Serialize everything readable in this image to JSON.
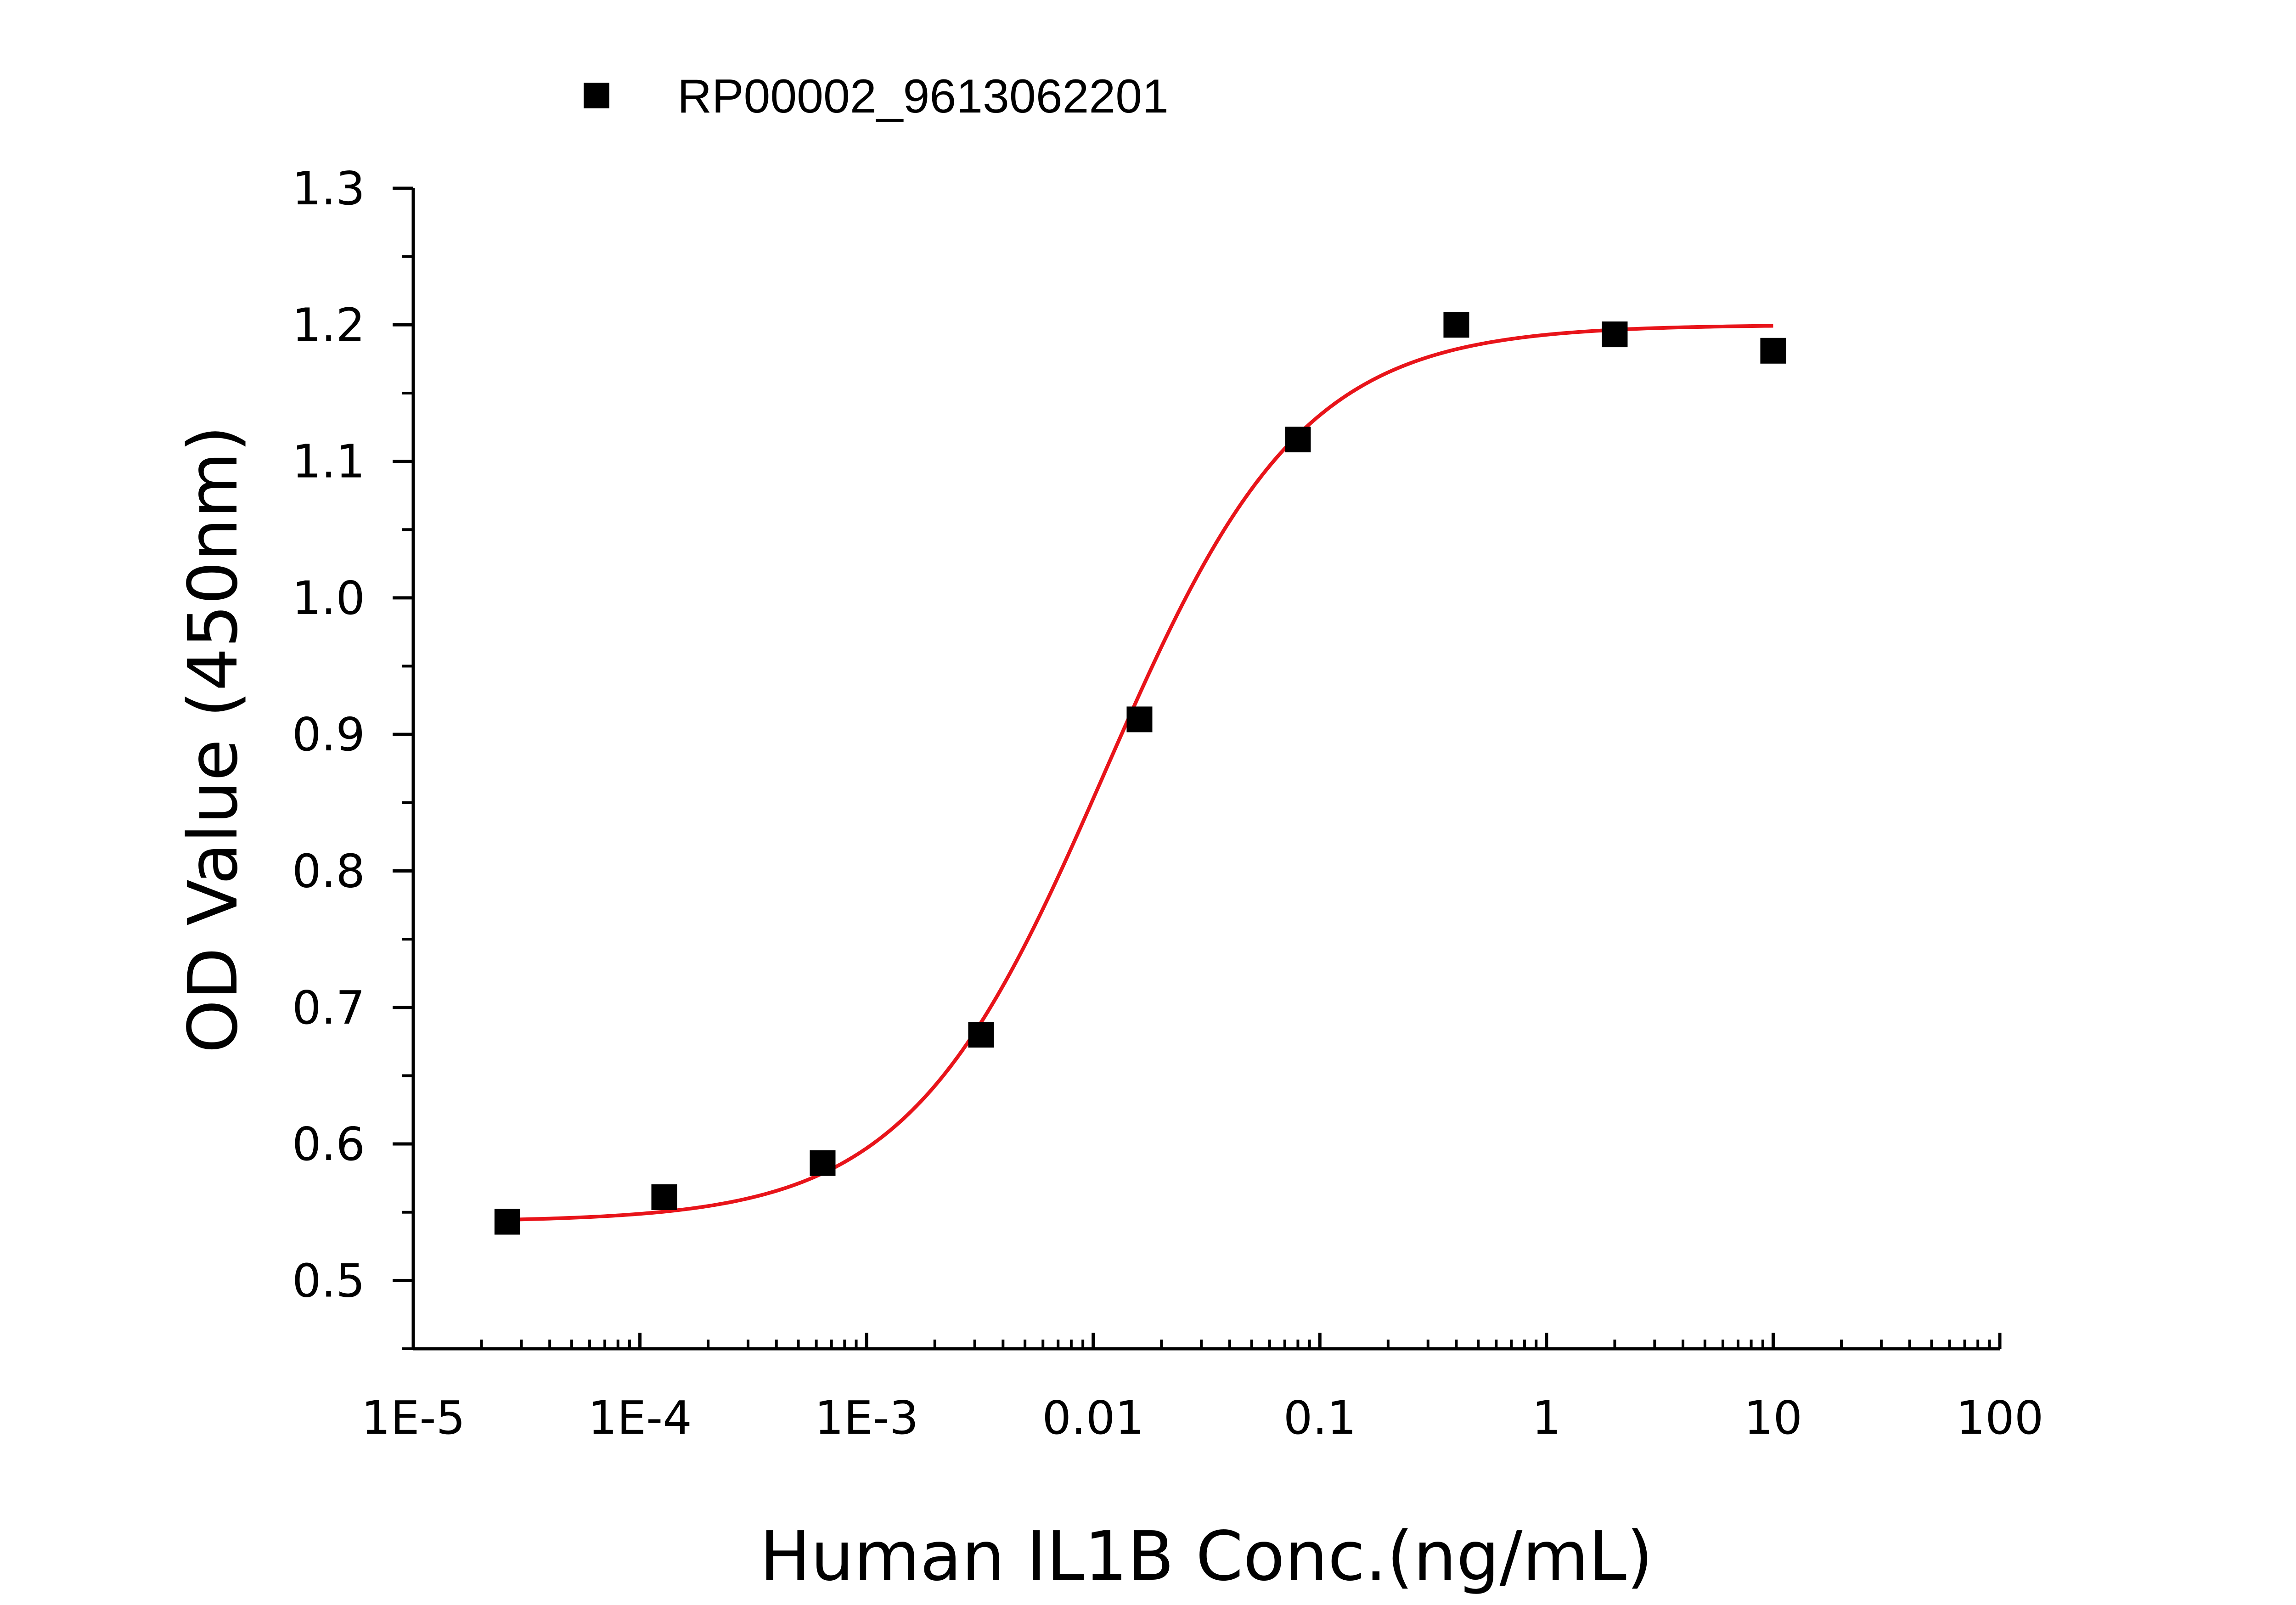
{
  "chart_data": {
    "type": "scatter",
    "title": "",
    "xlabel": "Human IL1B Conc.(ng/mL)",
    "ylabel": "OD Value (450nm)",
    "x_scale": "log10",
    "xlim": [
      1e-05,
      100
    ],
    "ylim": [
      0.45,
      1.3
    ],
    "x_ticks": [
      {
        "value": 1e-05,
        "label": "1E-5"
      },
      {
        "value": 0.0001,
        "label": "1E-4"
      },
      {
        "value": 0.001,
        "label": "1E-3"
      },
      {
        "value": 0.01,
        "label": "0.01"
      },
      {
        "value": 0.1,
        "label": "0.1"
      },
      {
        "value": 1,
        "label": "1"
      },
      {
        "value": 10,
        "label": "10"
      },
      {
        "value": 100,
        "label": "100"
      }
    ],
    "y_ticks": [
      {
        "value": 0.5,
        "label": "0.5"
      },
      {
        "value": 0.6,
        "label": "0.6"
      },
      {
        "value": 0.7,
        "label": "0.7"
      },
      {
        "value": 0.8,
        "label": "0.8"
      },
      {
        "value": 0.9,
        "label": "0.9"
      },
      {
        "value": 1.0,
        "label": "1.0"
      },
      {
        "value": 1.1,
        "label": "1.1"
      },
      {
        "value": 1.2,
        "label": "1.2"
      },
      {
        "value": 1.3,
        "label": "1.3"
      }
    ],
    "grid": false,
    "legend": {
      "position": "top-center",
      "entries": [
        "RP00002_9613062201"
      ]
    },
    "series": [
      {
        "name": "RP00002_9613062201",
        "marker": "square",
        "color": "#000000",
        "x": [
          2.6e-05,
          0.000128,
          0.00064,
          0.0032,
          0.016,
          0.08,
          0.4,
          2,
          10
        ],
        "y": [
          0.543,
          0.561,
          0.586,
          0.68,
          0.911,
          1.116,
          1.2,
          1.193,
          1.181
        ]
      }
    ],
    "fit_curve": {
      "model": "4PL",
      "color": "#e8141a",
      "bottom": 0.543,
      "top": 1.2,
      "ec50": 0.0112,
      "hill": 1.0,
      "x_range": [
        2.6e-05,
        10
      ]
    }
  }
}
